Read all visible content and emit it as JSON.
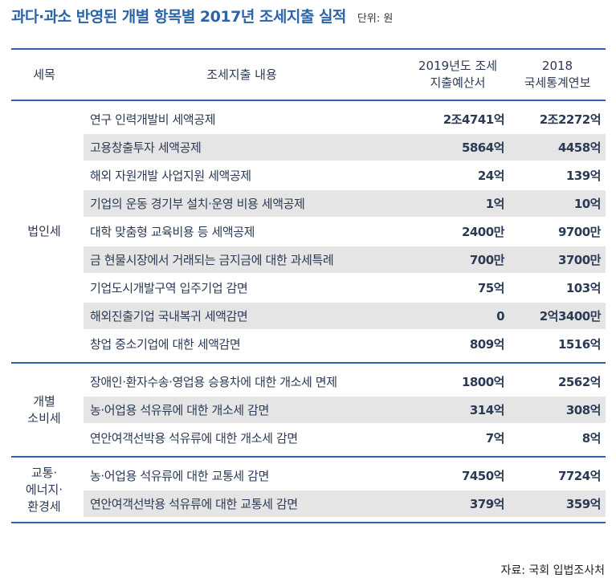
{
  "title": "과다·과소 반영된 개별 항목별 2017년 조세지출 실적",
  "unit": "단위: 원",
  "header": {
    "category": "세목",
    "description": "조세지출 내용",
    "col1_line1": "2019년도 조세",
    "col1_line2": "지출예산서",
    "col2_line1": "2018",
    "col2_line2": "국세통계연보"
  },
  "groups": [
    {
      "label_lines": [
        "법인세"
      ],
      "rows": [
        {
          "desc": "연구 인력개발비 세액공제",
          "v1": "2조4741억",
          "v2": "2조2272억"
        },
        {
          "desc": "고용창출투자 세액공제",
          "v1": "5864억",
          "v2": "4458억"
        },
        {
          "desc": "해외 자원개발 사업지원 세액공제",
          "v1": "24억",
          "v2": "139억"
        },
        {
          "desc": "기업의 운동 경기부 설치·운영 비용 세액공제",
          "v1": "1억",
          "v2": "10억"
        },
        {
          "desc": "대학 맞춤형 교육비용 등 세액공제",
          "v1": "2400만",
          "v2": "9700만"
        },
        {
          "desc": "금 현물시장에서 거래되는 금지금에 대한 과세특례",
          "v1": "700만",
          "v2": "3700만"
        },
        {
          "desc": "기업도시개발구역 입주기업 감면",
          "v1": "75억",
          "v2": "103억"
        },
        {
          "desc": "해외진출기업 국내복귀 세액감면",
          "v1": "0",
          "v2": "2억3400만"
        },
        {
          "desc": "창업 중소기업에 대한 세액감면",
          "v1": "809억",
          "v2": "1516억"
        }
      ]
    },
    {
      "label_lines": [
        "개별",
        "소비세"
      ],
      "rows": [
        {
          "desc": "장애인·환자수송·영업용 승용차에 대한 개소세 면제",
          "v1": "1800억",
          "v2": "2562억"
        },
        {
          "desc": "농·어업용 석유류에 대한 개소세 감면",
          "v1": "314억",
          "v2": "308억"
        },
        {
          "desc": "연안여객선박용 석유류에 대한 개소세 감면",
          "v1": "7억",
          "v2": "8억"
        }
      ]
    },
    {
      "label_lines": [
        "교통·",
        "에너지·",
        "환경세"
      ],
      "rows": [
        {
          "desc": "농·어업용 석유류에 대한 교통세 감면",
          "v1": "7450억",
          "v2": "7724억"
        },
        {
          "desc": "연안여객선박용 석유류에 대한 교통세 감면",
          "v1": "379억",
          "v2": "359억"
        }
      ]
    }
  ],
  "source": "자료: 국회 입법조사처"
}
